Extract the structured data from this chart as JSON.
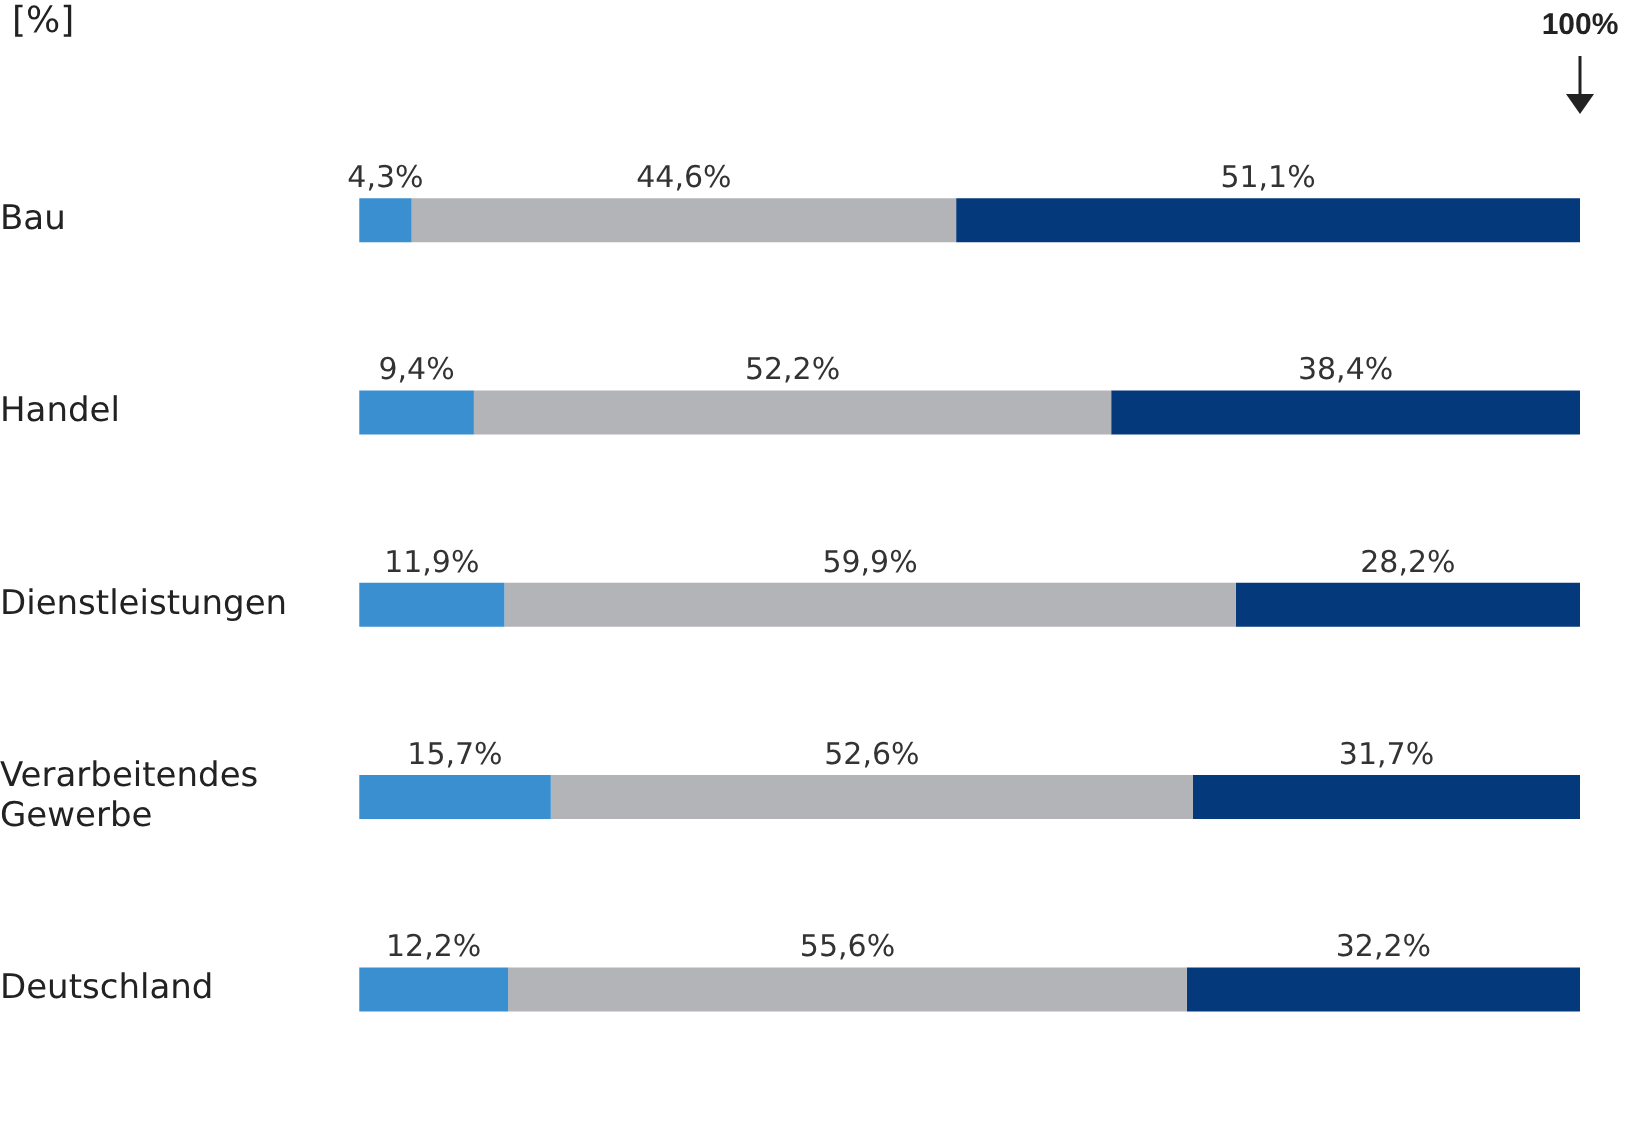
{
  "chart_data": {
    "type": "bar",
    "orientation": "horizontal",
    "stacked": true,
    "title": "[%]",
    "categories": [
      "Bau",
      "Handel",
      "Dienstleistungen",
      "Verarbeitendes Gewerbe",
      "Deutschland"
    ],
    "series": [
      {
        "color": "#3a8fd0",
        "values": [
          4.3,
          9.4,
          11.9,
          15.7,
          12.2
        ],
        "value_labels": [
          "4,3%",
          "9,4%",
          "11,9%",
          "15,7%",
          "12,2%"
        ]
      },
      {
        "color": "#b3b4b8",
        "values": [
          44.6,
          52.2,
          59.9,
          52.6,
          55.6
        ],
        "value_labels": [
          "44,6%",
          "52,2%",
          "59,9%",
          "52,6%",
          "55,6%"
        ]
      },
      {
        "color": "#043a7c",
        "values": [
          51.1,
          38.4,
          28.2,
          31.7,
          32.2
        ],
        "value_labels": [
          "51,1%",
          "38,4%",
          "28,2%",
          "31,7%",
          "32,2%"
        ]
      }
    ],
    "xlim": [
      0,
      100
    ],
    "tick_labels": "y",
    "grid": false,
    "legend": false,
    "annotations": [
      "100%"
    ]
  }
}
